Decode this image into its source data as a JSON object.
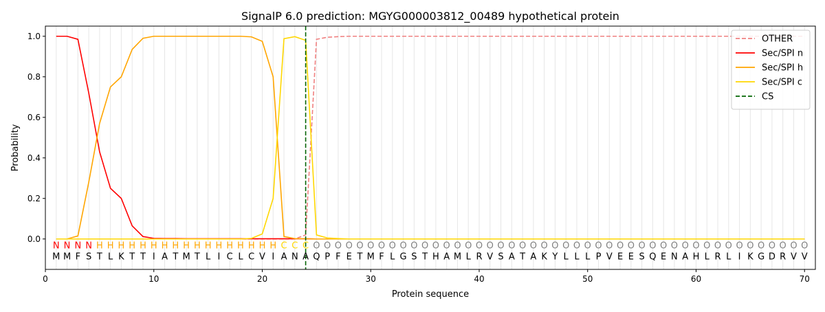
{
  "chart_data": {
    "type": "line",
    "title": "SignalP 6.0 prediction: MGYG000003812_00489 hypothetical protein",
    "xlabel": "Protein sequence",
    "ylabel": "Probability",
    "xlim": [
      0,
      71
    ],
    "ylim": [
      -0.15,
      1.05
    ],
    "x_ticks": [
      0,
      10,
      20,
      30,
      40,
      50,
      60,
      70
    ],
    "y_ticks": [
      0.0,
      0.2,
      0.4,
      0.6,
      0.8,
      1.0
    ],
    "grid": "vertical lines at each residue position",
    "legend_position": "top-right",
    "sequence": "MMFSTLKTTIATMTLICLCVIANAQPFETMFLGSTHAMLRVSATAKYLLLPVEESQENAHLRLIKGDRVV",
    "region_labels": "NNNNHHHHHHHHHHHHHHHHHCCCOOOOOOOOOOOOOOOOOOOOOOOOOOOOOOOOOOOOOOOOOOOOOO",
    "region_colors": {
      "N": "#ff0000",
      "H": "#ffa500",
      "C": "#ffd700",
      "O": "#808080"
    },
    "cleavage_site": 24,
    "series": [
      {
        "name": "OTHER",
        "color": "#f08080",
        "style": "dashed",
        "values": [
          0,
          0,
          0,
          0,
          0,
          0,
          0,
          0,
          0,
          0,
          0,
          0,
          0,
          0,
          0,
          0,
          0,
          0,
          0,
          0,
          0,
          0,
          0,
          0.02,
          0.985,
          0.995,
          0.998,
          1,
          1,
          1,
          1,
          1,
          1,
          1,
          1,
          1,
          1,
          1,
          1,
          1,
          1,
          1,
          1,
          1,
          1,
          1,
          1,
          1,
          1,
          1,
          1,
          1,
          1,
          1,
          1,
          1,
          1,
          1,
          1,
          1,
          1,
          1,
          1,
          1,
          1,
          1,
          1,
          1,
          1,
          1
        ]
      },
      {
        "name": "Sec/SPI n",
        "color": "#ff0000",
        "style": "solid",
        "values": [
          1.0,
          1.0,
          0.985,
          0.72,
          0.43,
          0.25,
          0.2,
          0.065,
          0.012,
          0.003,
          0.002,
          0.002,
          0.001,
          0.001,
          0.001,
          0.001,
          0.001,
          0.001,
          0.001,
          0.001,
          0.001,
          0.001,
          0.001,
          0.001,
          0,
          0,
          0,
          0,
          0,
          0,
          0,
          0,
          0,
          0,
          0,
          0,
          0,
          0,
          0,
          0,
          0,
          0,
          0,
          0,
          0,
          0,
          0,
          0,
          0,
          0,
          0,
          0,
          0,
          0,
          0,
          0,
          0,
          0,
          0,
          0,
          0,
          0,
          0,
          0,
          0,
          0,
          0,
          0,
          0,
          0
        ]
      },
      {
        "name": "Sec/SPI h",
        "color": "#ffa500",
        "style": "solid",
        "values": [
          0,
          0,
          0.015,
          0.28,
          0.57,
          0.75,
          0.8,
          0.935,
          0.99,
          1.0,
          1.0,
          1.0,
          1.0,
          1.0,
          1.0,
          1.0,
          1.0,
          1.0,
          0.997,
          0.975,
          0.8,
          0.012,
          0.002,
          0.001,
          0,
          0,
          0,
          0,
          0,
          0,
          0,
          0,
          0,
          0,
          0,
          0,
          0,
          0,
          0,
          0,
          0,
          0,
          0,
          0,
          0,
          0,
          0,
          0,
          0,
          0,
          0,
          0,
          0,
          0,
          0,
          0,
          0,
          0,
          0,
          0,
          0,
          0,
          0,
          0,
          0,
          0,
          0,
          0,
          0,
          0
        ]
      },
      {
        "name": "Sec/SPI c",
        "color": "#ffd700",
        "style": "solid",
        "values": [
          0,
          0,
          0,
          0,
          0,
          0,
          0,
          0,
          0,
          0,
          0,
          0,
          0,
          0,
          0,
          0,
          0,
          0,
          0.003,
          0.025,
          0.2,
          0.988,
          0.998,
          0.98,
          0.02,
          0.005,
          0.002,
          0,
          0,
          0,
          0,
          0,
          0,
          0,
          0,
          0,
          0,
          0,
          0,
          0,
          0,
          0,
          0,
          0,
          0,
          0,
          0,
          0,
          0,
          0,
          0,
          0,
          0,
          0,
          0,
          0,
          0,
          0,
          0,
          0,
          0,
          0,
          0,
          0,
          0,
          0,
          0,
          0,
          0,
          0
        ]
      }
    ],
    "cs_series": {
      "name": "CS",
      "color": "#006400",
      "style": "dashed"
    }
  }
}
